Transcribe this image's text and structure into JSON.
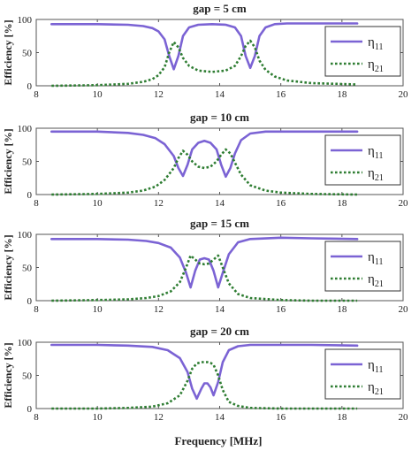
{
  "figure": {
    "xlabel": "Frequency [MHz]",
    "ylabel": "Efficiency [%]",
    "legend": [
      {
        "base": "η",
        "sub": "11",
        "color": "#7b63d4",
        "style": "solid"
      },
      {
        "base": "η",
        "sub": "21",
        "color": "#2e7d32",
        "style": "dotted"
      }
    ],
    "colors": {
      "eta11": "#7b63d4",
      "eta21": "#2e7d32",
      "axis": "#555555"
    }
  },
  "chart_data": [
    {
      "type": "line",
      "title": "gap = 5 cm",
      "xlim": [
        8,
        20
      ],
      "ylim": [
        0,
        100
      ],
      "xticks": [
        "8",
        "10",
        "12",
        "14",
        "16",
        "18",
        "20"
      ],
      "yticks": [
        "0",
        "50",
        "100"
      ],
      "legend_position": "right",
      "series": [
        {
          "name": "η11",
          "x": [
            8.5,
            10,
            11,
            11.5,
            11.8,
            12,
            12.2,
            12.35,
            12.5,
            12.65,
            12.8,
            13,
            13.3,
            13.75,
            14.2,
            14.5,
            14.7,
            14.85,
            15,
            15.15,
            15.3,
            15.5,
            15.8,
            16.2,
            17,
            18.5
          ],
          "y": [
            93,
            93,
            92,
            90,
            87,
            82,
            70,
            45,
            25,
            45,
            75,
            88,
            92,
            93,
            92,
            88,
            75,
            45,
            27,
            45,
            75,
            88,
            93,
            94,
            94,
            94
          ]
        },
        {
          "name": "η21",
          "x": [
            8.5,
            10,
            11,
            11.5,
            11.8,
            12,
            12.2,
            12.35,
            12.5,
            12.65,
            12.8,
            13,
            13.3,
            13.75,
            14.2,
            14.5,
            14.7,
            14.85,
            15,
            15.15,
            15.3,
            15.5,
            15.8,
            16.2,
            17,
            18.5
          ],
          "y": [
            0,
            1,
            3,
            6,
            10,
            16,
            28,
            50,
            66,
            58,
            42,
            30,
            23,
            21,
            23,
            30,
            45,
            60,
            68,
            58,
            38,
            24,
            14,
            8,
            4,
            2
          ]
        }
      ]
    },
    {
      "type": "line",
      "title": "gap = 10 cm",
      "xlim": [
        8,
        20
      ],
      "ylim": [
        0,
        100
      ],
      "xticks": [
        "8",
        "10",
        "12",
        "14",
        "16",
        "18",
        "20"
      ],
      "yticks": [
        "0",
        "50",
        "100"
      ],
      "legend_position": "right",
      "series": [
        {
          "name": "η11",
          "x": [
            8.5,
            10,
            11,
            11.5,
            11.9,
            12.2,
            12.5,
            12.65,
            12.8,
            12.95,
            13.1,
            13.3,
            13.5,
            13.7,
            13.9,
            14.05,
            14.2,
            14.35,
            14.5,
            14.7,
            15,
            15.5,
            16,
            17,
            18.5
          ],
          "y": [
            95,
            95,
            93,
            90,
            85,
            76,
            58,
            40,
            28,
            45,
            68,
            78,
            81,
            78,
            68,
            45,
            27,
            40,
            62,
            82,
            92,
            95,
            95,
            95,
            95
          ]
        },
        {
          "name": "η21",
          "x": [
            8.5,
            10,
            11,
            11.5,
            11.9,
            12.2,
            12.5,
            12.65,
            12.8,
            12.95,
            13.1,
            13.3,
            13.5,
            13.7,
            13.9,
            14.05,
            14.2,
            14.35,
            14.5,
            14.7,
            15,
            15.5,
            16,
            17,
            18.5
          ],
          "y": [
            0,
            1,
            3,
            6,
            12,
            22,
            40,
            55,
            66,
            60,
            50,
            42,
            40,
            42,
            50,
            60,
            68,
            62,
            48,
            30,
            14,
            6,
            3,
            1,
            0
          ]
        }
      ]
    },
    {
      "type": "line",
      "title": "gap = 15 cm",
      "xlim": [
        8,
        20
      ],
      "ylim": [
        0,
        100
      ],
      "xticks": [
        "8",
        "10",
        "12",
        "14",
        "16",
        "18",
        "20"
      ],
      "yticks": [
        "0",
        "50",
        "100"
      ],
      "legend_position": "right",
      "series": [
        {
          "name": "η11",
          "x": [
            8.5,
            10,
            11,
            11.6,
            12,
            12.4,
            12.7,
            12.9,
            13.05,
            13.2,
            13.35,
            13.5,
            13.65,
            13.8,
            13.95,
            14.1,
            14.3,
            14.6,
            15,
            16,
            17,
            18.5
          ],
          "y": [
            93,
            93,
            92,
            90,
            87,
            80,
            65,
            42,
            20,
            45,
            62,
            64,
            62,
            45,
            20,
            42,
            70,
            88,
            93,
            95,
            94,
            93
          ]
        },
        {
          "name": "η21",
          "x": [
            8.5,
            10,
            11,
            11.6,
            12,
            12.4,
            12.7,
            12.9,
            13.05,
            13.2,
            13.35,
            13.5,
            13.65,
            13.8,
            13.95,
            14.1,
            14.3,
            14.6,
            15,
            16,
            17,
            18.5
          ],
          "y": [
            0,
            1,
            2,
            4,
            7,
            14,
            28,
            50,
            68,
            62,
            56,
            55,
            56,
            62,
            68,
            50,
            26,
            10,
            4,
            1,
            0,
            0
          ]
        }
      ]
    },
    {
      "type": "line",
      "title": "gap = 20 cm",
      "xlim": [
        8,
        20
      ],
      "ylim": [
        0,
        100
      ],
      "xticks": [
        "8",
        "10",
        "12",
        "14",
        "16",
        "18",
        "20"
      ],
      "yticks": [
        "0",
        "50",
        "100"
      ],
      "legend_position": "right",
      "series": [
        {
          "name": "η11",
          "x": [
            8.5,
            10,
            11,
            11.8,
            12.3,
            12.7,
            12.95,
            13.1,
            13.25,
            13.4,
            13.5,
            13.6,
            13.7,
            13.8,
            13.95,
            14.1,
            14.3,
            14.6,
            15,
            16,
            17,
            18.5
          ],
          "y": [
            96,
            96,
            95,
            93,
            88,
            76,
            55,
            30,
            15,
            30,
            38,
            38,
            32,
            20,
            40,
            70,
            88,
            94,
            96,
            96,
            96,
            95
          ]
        },
        {
          "name": "η21",
          "x": [
            8.5,
            10,
            11,
            11.8,
            12.3,
            12.7,
            12.95,
            13.1,
            13.25,
            13.4,
            13.5,
            13.6,
            13.7,
            13.8,
            13.95,
            14.1,
            14.3,
            14.6,
            15,
            16,
            17,
            18.5
          ],
          "y": [
            0,
            0,
            1,
            3,
            8,
            20,
            42,
            60,
            68,
            70,
            70,
            70,
            69,
            66,
            50,
            28,
            10,
            4,
            1,
            0,
            0,
            0
          ]
        }
      ]
    }
  ]
}
